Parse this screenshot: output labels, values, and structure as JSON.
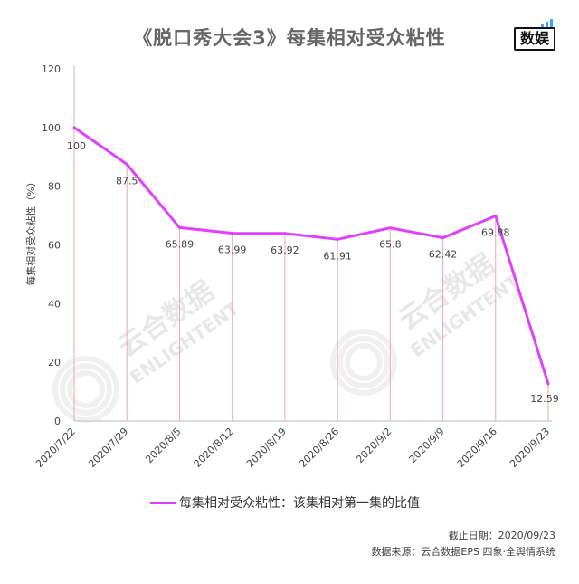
{
  "title": "《脱口秀大会3》每集相对受众粘性",
  "logo": {
    "text": "数娱",
    "icon": "bar-signal-icon"
  },
  "watermark": {
    "cn": "云合数据",
    "en": "ENLIGHTENT"
  },
  "chart_data": {
    "type": "line",
    "categories": [
      "2020/7/22",
      "2020/7/29",
      "2020/8/5",
      "2020/8/12",
      "2020/8/19",
      "2020/8/26",
      "2020/9/2",
      "2020/9/9",
      "2020/9/16",
      "2020/9/23"
    ],
    "series": [
      {
        "name": "每集相对受众粘性：该集相对第一集的比值",
        "values": [
          100,
          87.5,
          65.89,
          63.99,
          63.92,
          61.91,
          65.8,
          62.42,
          69.88,
          12.59
        ],
        "color": "#e040fb"
      }
    ],
    "data_labels": [
      "100",
      "87.5",
      "65.89",
      "63.99",
      "63.92",
      "61.91",
      "65.8",
      "62.42",
      "69.88",
      "12.59"
    ],
    "ylabel": "每集相对受众粘性（%）",
    "ylim": [
      0,
      120
    ],
    "yticks": [
      "0",
      "20",
      "40",
      "60",
      "80",
      "100",
      "120"
    ],
    "drop_line_color": "#f4a7a7",
    "legend_position": "bottom"
  },
  "footer": {
    "cutoff": "截止日期：2020/09/23",
    "source": "数据来源：云合数据EPS 四象·全舆情系统"
  }
}
